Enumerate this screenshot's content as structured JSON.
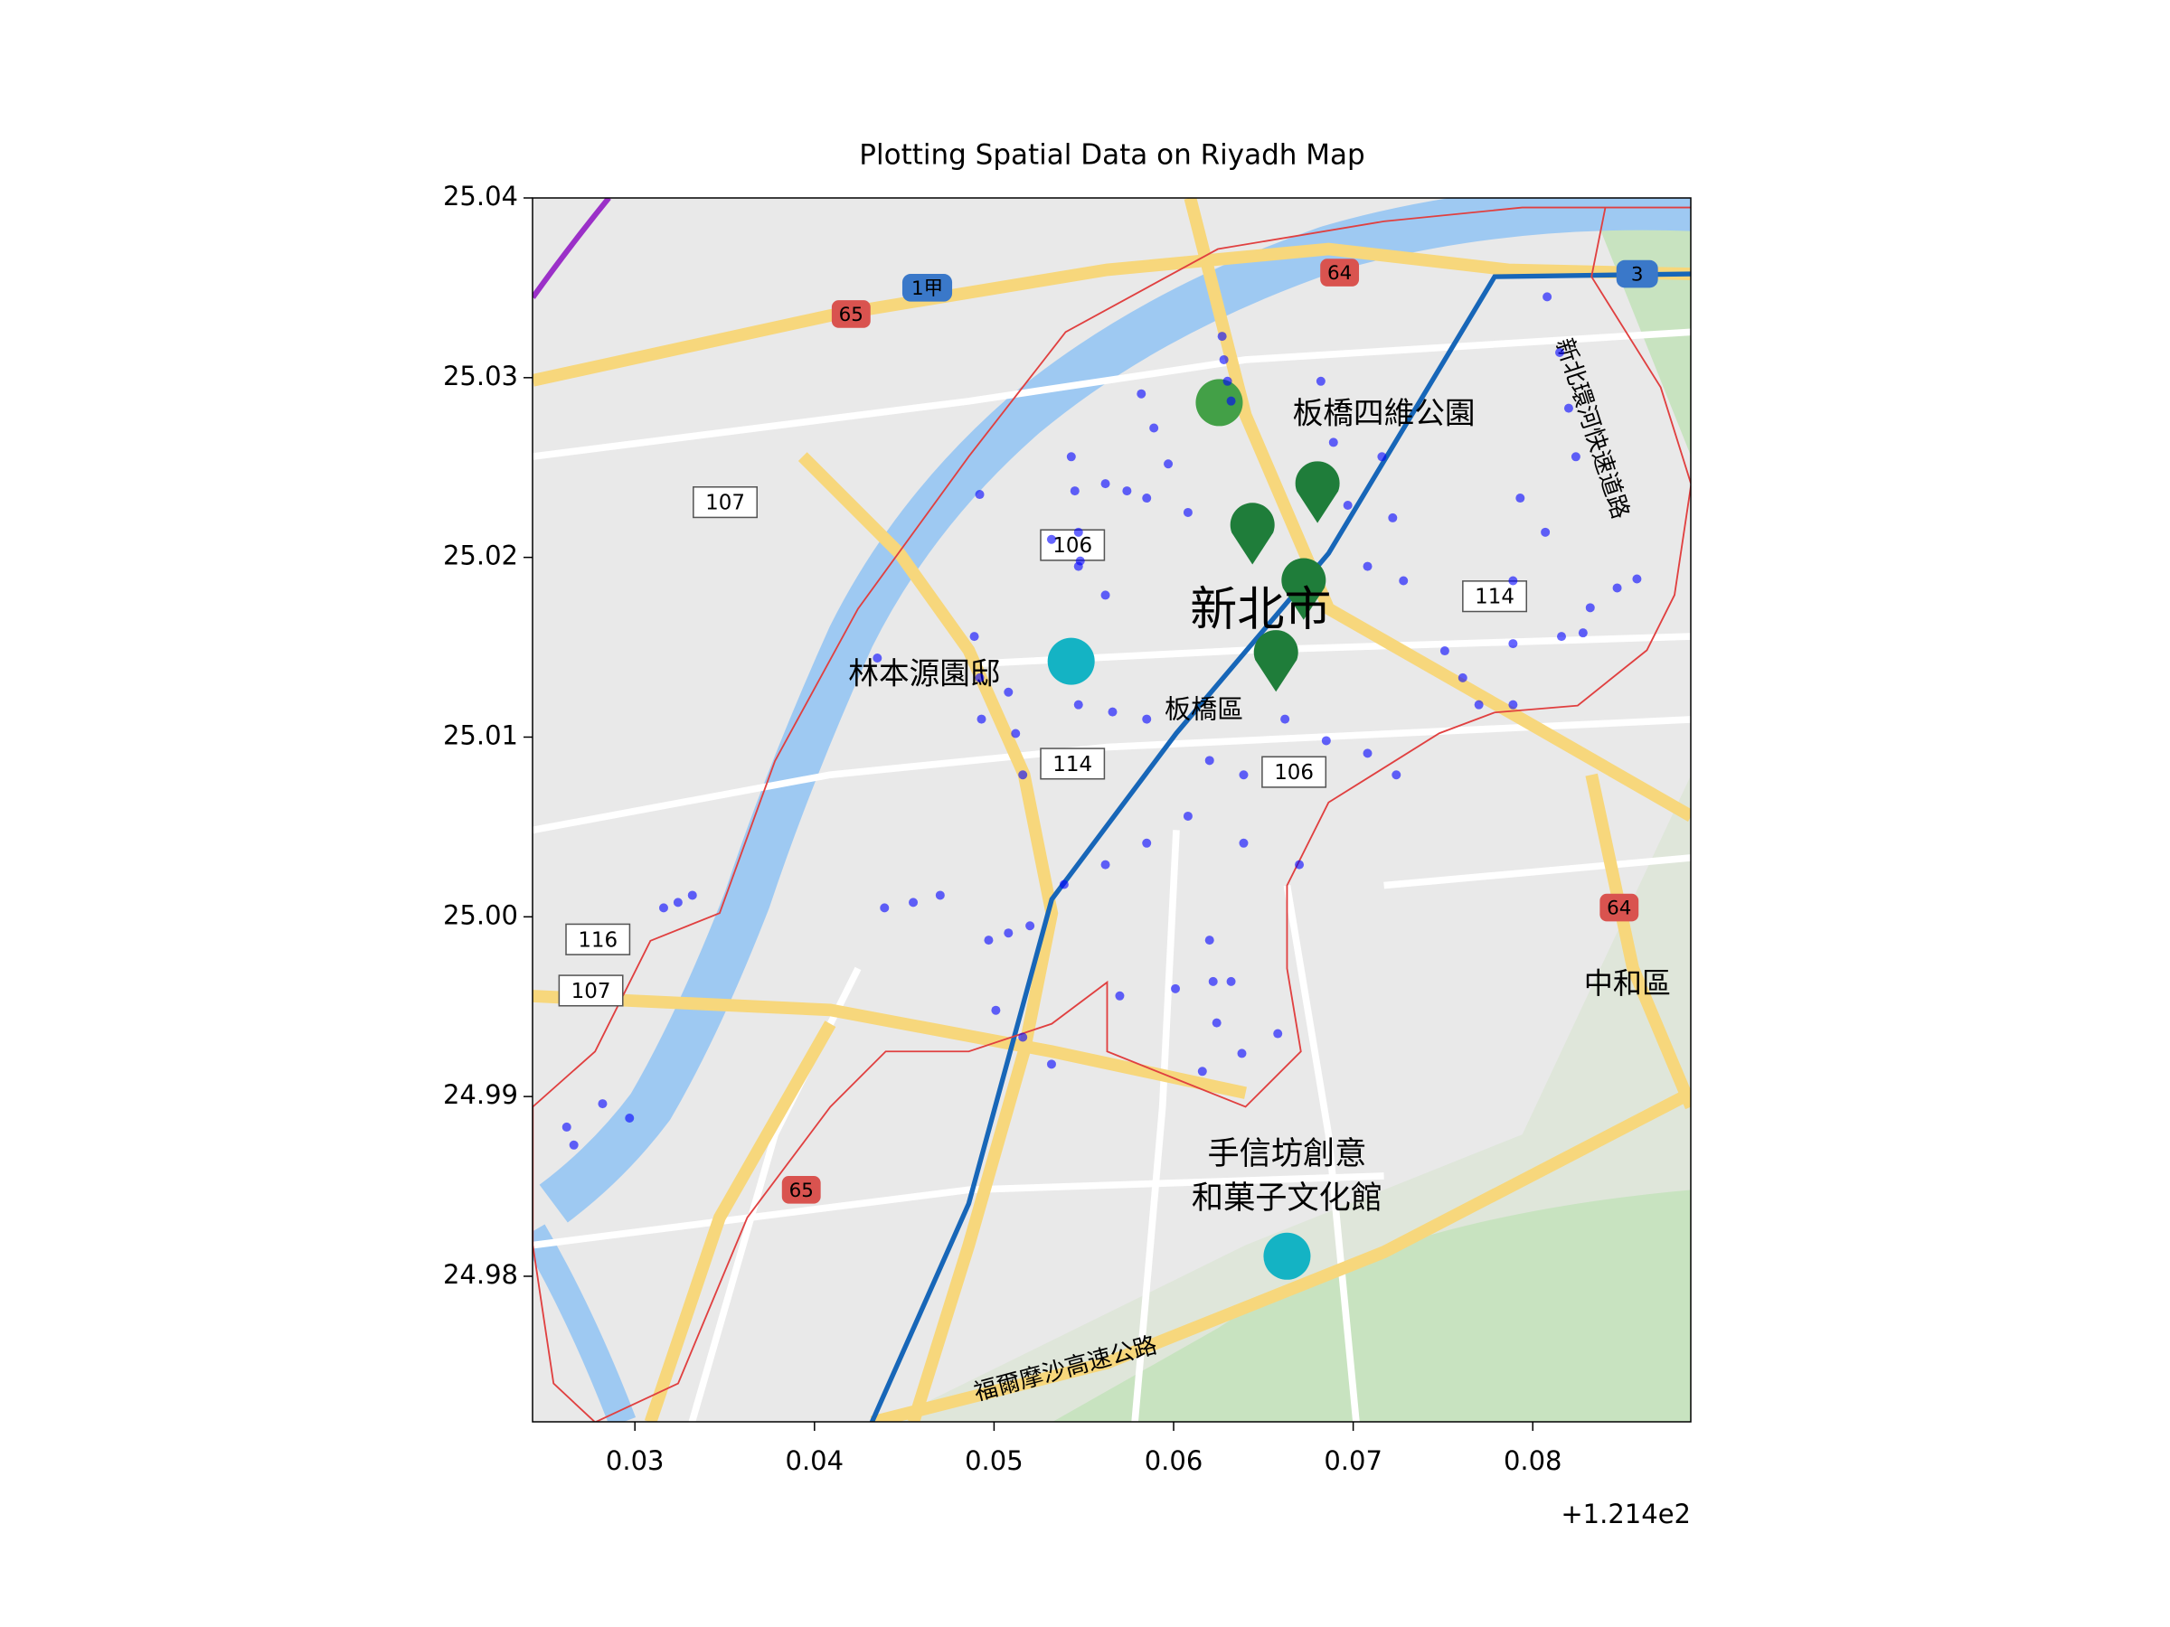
{
  "chart_data": {
    "type": "scatter",
    "title": "Plotting Spatial Data on Riyadh Map",
    "x_offset_label": "+1.214e2",
    "xlim": [
      0.0243,
      0.0888
    ],
    "ylim": [
      24.9719,
      25.04
    ],
    "xticks": [
      0.03,
      0.04,
      0.05,
      0.06,
      0.07,
      0.08
    ],
    "yticks": [
      24.98,
      24.99,
      {
        "value": 25,
        "label": "25.00"
      },
      25.01,
      25.02,
      25.03,
      25.04
    ],
    "color": "#0000ff",
    "x": [
      0.0627,
      0.0628,
      0.063,
      0.0632,
      0.0582,
      0.0589,
      0.0597,
      0.0608,
      0.0543,
      0.0545,
      0.0547,
      0.0548,
      0.0562,
      0.0574,
      0.0585,
      0.0682,
      0.0689,
      0.0697,
      0.0708,
      0.0716,
      0.0722,
      0.0728,
      0.0793,
      0.0807,
      0.0789,
      0.0789,
      0.0789,
      0.0808,
      0.0815,
      0.082,
      0.0824,
      0.0816,
      0.0832,
      0.0847,
      0.0858,
      0.0828,
      0.0751,
      0.0761,
      0.077,
      0.0532,
      0.0547,
      0.0562,
      0.0489,
      0.0492,
      0.0493,
      0.0508,
      0.0512,
      0.0516,
      0.0547,
      0.0566,
      0.0585,
      0.0662,
      0.0685,
      0.0708,
      0.0724,
      0.062,
      0.0639,
      0.0608,
      0.0639,
      0.067,
      0.0539,
      0.0562,
      0.0585,
      0.0439,
      0.0455,
      0.047,
      0.0497,
      0.0508,
      0.052,
      0.057,
      0.0601,
      0.0632,
      0.062,
      0.0622,
      0.0624,
      0.0616,
      0.0638,
      0.0658,
      0.0501,
      0.0516,
      0.0532,
      0.0316,
      0.0324,
      0.0332,
      0.0262,
      0.0266,
      0.0282,
      0.0297,
      0.0435,
      0.0492
    ],
    "y": [
      25.0323,
      25.031,
      25.0298,
      25.0287,
      25.0291,
      25.0272,
      25.0252,
      25.0225,
      25.0256,
      25.0237,
      25.0214,
      25.0198,
      25.0241,
      25.0237,
      25.0233,
      25.0298,
      25.0264,
      25.0229,
      25.0195,
      25.0256,
      25.0222,
      25.0187,
      25.0233,
      25.0214,
      25.0187,
      25.0152,
      25.0118,
      25.0345,
      25.0314,
      25.0283,
      25.0256,
      25.0156,
      25.0172,
      25.0183,
      25.0188,
      25.0158,
      25.0148,
      25.0133,
      25.0118,
      25.021,
      25.0195,
      25.0179,
      25.0156,
      25.0133,
      25.011,
      25.0125,
      25.0102,
      25.0079,
      25.0118,
      25.0114,
      25.011,
      25.011,
      25.0098,
      25.0091,
      25.0079,
      25.0087,
      25.0079,
      25.0056,
      25.0041,
      25.0029,
      25.0018,
      25.0029,
      25.0041,
      25.0005,
      25.0008,
      25.0012,
      24.9987,
      24.9991,
      24.9995,
      24.9956,
      24.996,
      24.9964,
      24.9987,
      24.9964,
      24.9941,
      24.9914,
      24.9924,
      24.9935,
      24.9948,
      24.9933,
      24.9918,
      25.0005,
      25.0008,
      25.0012,
      24.9883,
      24.9873,
      24.9896,
      24.9888,
      25.0144,
      25.0235
    ],
    "map_labels": [
      "新北市",
      "板橋區",
      "林本源園邸",
      "板橋四維公園",
      "手信坊創意",
      "和菓子文化館",
      "中和區",
      "福爾摩沙高速公路",
      "新北環河快速道路",
      "65",
      "64",
      "3",
      "1甲",
      "107",
      "106",
      "114",
      "116"
    ]
  }
}
